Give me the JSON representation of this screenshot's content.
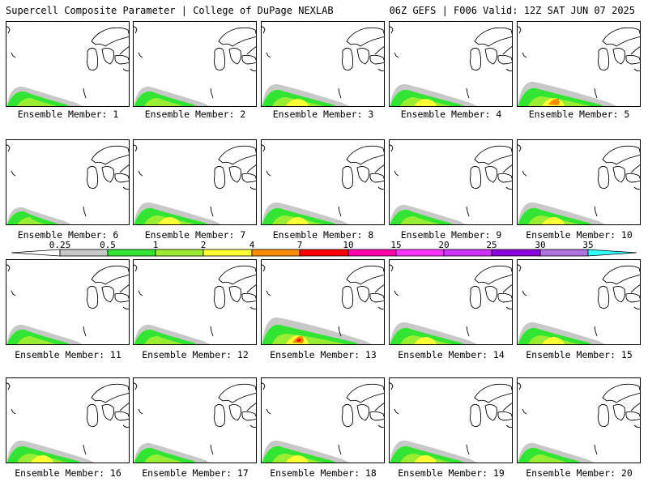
{
  "header": {
    "left": "Supercell Composite Parameter | College of DuPage NEXLAB",
    "right": "06Z GEFS | F006 Valid: 12Z SAT JUN 07 2025"
  },
  "members": [
    {
      "label": "Ensemble Member: 1",
      "intensity": 2
    },
    {
      "label": "Ensemble Member: 2",
      "intensity": 2
    },
    {
      "label": "Ensemble Member: 3",
      "intensity": 3
    },
    {
      "label": "Ensemble Member: 4",
      "intensity": 3
    },
    {
      "label": "Ensemble Member: 5",
      "intensity": 4
    },
    {
      "label": "Ensemble Member: 6",
      "intensity": 1
    },
    {
      "label": "Ensemble Member: 7",
      "intensity": 3
    },
    {
      "label": "Ensemble Member: 8",
      "intensity": 3
    },
    {
      "label": "Ensemble Member: 9",
      "intensity": 2
    },
    {
      "label": "Ensemble Member: 10",
      "intensity": 3
    },
    {
      "label": "Ensemble Member: 11",
      "intensity": 2
    },
    {
      "label": "Ensemble Member: 12",
      "intensity": 2
    },
    {
      "label": "Ensemble Member: 13",
      "intensity": 5
    },
    {
      "label": "Ensemble Member: 14",
      "intensity": 3
    },
    {
      "label": "Ensemble Member: 15",
      "intensity": 3
    },
    {
      "label": "Ensemble Member: 16",
      "intensity": 3
    },
    {
      "label": "Ensemble Member: 17",
      "intensity": 2
    },
    {
      "label": "Ensemble Member: 18",
      "intensity": 3
    },
    {
      "label": "Ensemble Member: 19",
      "intensity": 3
    },
    {
      "label": "Ensemble Member: 20",
      "intensity": 2
    }
  ],
  "colorbar": {
    "labels": [
      "0.25",
      "0.5",
      "1",
      "2",
      "4",
      "7",
      "10",
      "15",
      "20",
      "25",
      "30",
      "35"
    ],
    "colors": [
      "#c8c8c8",
      "#33e533",
      "#99ee33",
      "#ffff33",
      "#ff8c00",
      "#ff0000",
      "#ff00aa",
      "#ff33ff",
      "#cc33ff",
      "#8800dd",
      "#b070e0",
      "#33ffff"
    ]
  }
}
